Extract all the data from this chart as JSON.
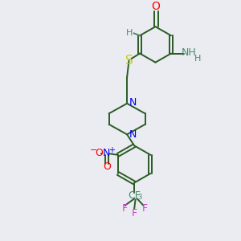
{
  "background_color": "#eaecf2",
  "figsize": [
    3.0,
    3.0
  ],
  "dpi": 100,
  "bond_color": "#2a5c24",
  "bond_width": 1.4,
  "colors": {
    "O": "#ff0000",
    "N": "#0000ee",
    "S": "#cccc00",
    "F": "#cc44cc",
    "C": "#2a5c24",
    "H": "#4a8a6a"
  }
}
